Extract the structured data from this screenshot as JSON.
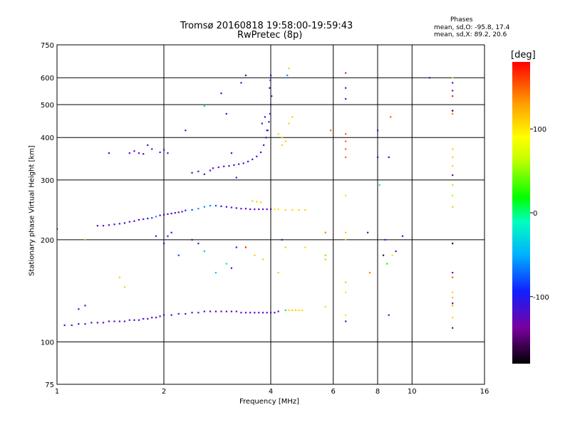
{
  "chart_data": {
    "type": "scatter",
    "title": "Tromsø 20160818 19:58:00-19:59:43",
    "subtitle": "RwPretec (8p)",
    "xlabel": "Frequency [MHz]",
    "ylabel": "Stationary phase Virtual Height [km]",
    "x_scale": "log",
    "y_scale": "log",
    "xlim": [
      1,
      16
    ],
    "ylim": [
      75,
      750
    ],
    "x_ticks": [
      1,
      2,
      4,
      6,
      8,
      10,
      16
    ],
    "y_ticks": [
      75,
      100,
      200,
      300,
      400,
      500,
      600,
      750
    ],
    "grid": true,
    "colorbar": {
      "unit": "[deg]",
      "ticks": [
        100,
        0,
        -100
      ],
      "range": [
        -180,
        180
      ],
      "colormap": "rainbow"
    },
    "stats": {
      "heading": "Phases",
      "o_line": "mean, sd,O: -95.8, 17.4",
      "x_line": "mean, sd,X:  89.2, 20.6"
    },
    "series": [
      {
        "points": [
          [
            1.05,
            112,
            -120
          ],
          [
            1.1,
            112,
            -120
          ],
          [
            1.15,
            113,
            -120
          ],
          [
            1.2,
            113,
            -120
          ],
          [
            1.25,
            114,
            -120
          ],
          [
            1.3,
            114,
            -120
          ],
          [
            1.35,
            114,
            -120
          ],
          [
            1.4,
            115,
            -120
          ],
          [
            1.45,
            115,
            -120
          ],
          [
            1.5,
            115,
            -120
          ],
          [
            1.55,
            115,
            -120
          ],
          [
            1.6,
            116,
            -120
          ],
          [
            1.65,
            116,
            -120
          ],
          [
            1.7,
            116,
            -120
          ],
          [
            1.75,
            117,
            -120
          ],
          [
            1.8,
            117,
            -120
          ],
          [
            1.85,
            118,
            -120
          ],
          [
            1.9,
            118,
            -120
          ],
          [
            1.95,
            119,
            -120
          ],
          [
            2.0,
            120,
            -120
          ],
          [
            2.1,
            120,
            -120
          ],
          [
            2.2,
            121,
            -120
          ],
          [
            2.3,
            121,
            -120
          ],
          [
            2.4,
            122,
            -120
          ],
          [
            2.5,
            122,
            -120
          ],
          [
            2.6,
            123,
            -120
          ],
          [
            2.7,
            123,
            -120
          ],
          [
            2.8,
            123,
            -120
          ],
          [
            2.9,
            123,
            -120
          ],
          [
            3.0,
            123,
            -120
          ],
          [
            3.1,
            123,
            -120
          ],
          [
            3.2,
            123,
            -120
          ],
          [
            3.3,
            122,
            -120
          ],
          [
            3.4,
            122,
            -120
          ],
          [
            3.5,
            122,
            -120
          ],
          [
            3.6,
            122,
            -120
          ],
          [
            3.7,
            122,
            -120
          ],
          [
            3.8,
            122,
            -120
          ],
          [
            3.9,
            122,
            -120
          ],
          [
            4.0,
            122,
            -120
          ],
          [
            4.1,
            122,
            -120
          ],
          [
            4.2,
            123,
            -120
          ],
          [
            4.4,
            124,
            20
          ],
          [
            4.5,
            124,
            110
          ],
          [
            4.6,
            124,
            110
          ],
          [
            4.7,
            124,
            110
          ],
          [
            4.8,
            124,
            110
          ],
          [
            4.9,
            124,
            110
          ],
          [
            1.3,
            220,
            -120
          ],
          [
            1.35,
            220,
            -120
          ],
          [
            1.4,
            221,
            -120
          ],
          [
            1.45,
            222,
            -120
          ],
          [
            1.5,
            223,
            -120
          ],
          [
            1.55,
            224,
            -120
          ],
          [
            1.6,
            226,
            -120
          ],
          [
            1.65,
            227,
            -120
          ],
          [
            1.7,
            229,
            -120
          ],
          [
            1.75,
            230,
            -120
          ],
          [
            1.8,
            231,
            -100
          ],
          [
            1.85,
            232,
            -80
          ],
          [
            1.9,
            234,
            -60
          ],
          [
            1.95,
            236,
            -120
          ],
          [
            2.0,
            237,
            -120
          ],
          [
            2.05,
            238,
            -120
          ],
          [
            2.1,
            239,
            -120
          ],
          [
            2.15,
            240,
            -120
          ],
          [
            2.2,
            241,
            -120
          ],
          [
            2.25,
            242,
            -120
          ],
          [
            2.3,
            244,
            -100
          ],
          [
            2.4,
            245,
            -80
          ],
          [
            2.5,
            247,
            -60
          ],
          [
            2.6,
            250,
            -60
          ],
          [
            2.7,
            252,
            -60
          ],
          [
            2.8,
            252,
            -80
          ],
          [
            2.9,
            251,
            -100
          ],
          [
            3.0,
            250,
            -120
          ],
          [
            3.1,
            249,
            -120
          ],
          [
            3.2,
            248,
            -120
          ],
          [
            3.3,
            247,
            -120
          ],
          [
            3.4,
            247,
            -120
          ],
          [
            3.5,
            246,
            -120
          ],
          [
            3.6,
            246,
            -120
          ],
          [
            3.7,
            246,
            -120
          ],
          [
            3.8,
            246,
            -120
          ],
          [
            3.9,
            246,
            -120
          ],
          [
            4.0,
            246,
            -120
          ],
          [
            4.1,
            246,
            100
          ],
          [
            4.2,
            246,
            100
          ],
          [
            4.4,
            245,
            110
          ],
          [
            4.6,
            245,
            110
          ],
          [
            4.8,
            245,
            110
          ],
          [
            5.0,
            245,
            110
          ],
          [
            3.55,
            260,
            110
          ],
          [
            3.65,
            259,
            110
          ],
          [
            3.75,
            258,
            110
          ],
          [
            2.75,
            325,
            -120
          ],
          [
            2.85,
            327,
            -120
          ],
          [
            2.95,
            329,
            -120
          ],
          [
            3.05,
            330,
            -120
          ],
          [
            3.15,
            332,
            -120
          ],
          [
            3.25,
            334,
            -120
          ],
          [
            3.35,
            336,
            -120
          ],
          [
            3.45,
            340,
            -120
          ],
          [
            3.55,
            345,
            -120
          ],
          [
            3.65,
            352,
            -120
          ],
          [
            3.75,
            362,
            -120
          ],
          [
            3.82,
            380,
            -120
          ],
          [
            3.88,
            400,
            -120
          ],
          [
            3.92,
            420,
            -120
          ],
          [
            3.95,
            445,
            -120
          ],
          [
            3.98,
            470,
            -120
          ],
          [
            4.0,
            500,
            -120
          ],
          [
            4.02,
            530,
            -120
          ],
          [
            3.97,
            560,
            -120
          ],
          [
            3.99,
            590,
            -120
          ],
          [
            4.0,
            610,
            -120
          ],
          [
            3.9,
            420,
            -110
          ],
          [
            3.85,
            460,
            -110
          ],
          [
            3.78,
            440,
            -110
          ],
          [
            4.2,
            410,
            110
          ],
          [
            4.3,
            400,
            110
          ],
          [
            4.4,
            390,
            110
          ],
          [
            4.5,
            440,
            110
          ],
          [
            4.6,
            460,
            110
          ],
          [
            4.3,
            380,
            110
          ],
          [
            1.6,
            360,
            -120
          ],
          [
            1.65,
            365,
            -120
          ],
          [
            1.7,
            360,
            -120
          ],
          [
            1.75,
            358,
            -120
          ],
          [
            1.95,
            362,
            -120
          ],
          [
            2.0,
            368,
            -120
          ],
          [
            2.05,
            360,
            -120
          ],
          [
            2.4,
            315,
            -120
          ],
          [
            2.5,
            318,
            -120
          ],
          [
            2.6,
            312,
            -120
          ],
          [
            2.7,
            320,
            -120
          ],
          [
            2.6,
            495,
            -30
          ],
          [
            2.9,
            540,
            -120
          ],
          [
            3.0,
            470,
            -120
          ],
          [
            3.3,
            580,
            -110
          ],
          [
            3.4,
            610,
            -120
          ],
          [
            6.5,
            620,
            170
          ],
          [
            6.5,
            560,
            -110
          ],
          [
            6.5,
            520,
            -110
          ],
          [
            6.5,
            410,
            150
          ],
          [
            6.5,
            390,
            150
          ],
          [
            6.5,
            370,
            150
          ],
          [
            6.5,
            350,
            150
          ],
          [
            6.5,
            270,
            100
          ],
          [
            6.5,
            210,
            110
          ],
          [
            6.5,
            200,
            110
          ],
          [
            6.5,
            150,
            50
          ],
          [
            6.5,
            140,
            70
          ],
          [
            6.5,
            120,
            100
          ],
          [
            6.5,
            115,
            -130
          ],
          [
            8.0,
            420,
            -110
          ],
          [
            8.0,
            350,
            -120
          ],
          [
            8.1,
            290,
            -20
          ],
          [
            8.6,
            350,
            -120
          ],
          [
            8.7,
            460,
            150
          ],
          [
            8.4,
            200,
            -120
          ],
          [
            8.3,
            180,
            -150
          ],
          [
            8.5,
            170,
            20
          ],
          [
            8.8,
            180,
            100
          ],
          [
            9.0,
            185,
            -120
          ],
          [
            8.6,
            120,
            -120
          ],
          [
            11.2,
            600,
            -130
          ],
          [
            13.0,
            600,
            110
          ],
          [
            13.0,
            580,
            -120
          ],
          [
            13.0,
            550,
            -130
          ],
          [
            13.0,
            530,
            170
          ],
          [
            13.0,
            480,
            -170
          ],
          [
            13.0,
            470,
            140
          ],
          [
            13.0,
            370,
            110
          ],
          [
            13.0,
            350,
            110
          ],
          [
            13.0,
            330,
            110
          ],
          [
            13.0,
            310,
            -140
          ],
          [
            13.0,
            290,
            110
          ],
          [
            13.0,
            270,
            60
          ],
          [
            13.0,
            250,
            110
          ],
          [
            13.0,
            195,
            -170
          ],
          [
            13.0,
            160,
            -120
          ],
          [
            13.0,
            155,
            150
          ],
          [
            13.0,
            140,
            110
          ],
          [
            13.0,
            135,
            120
          ],
          [
            13.0,
            130,
            -140
          ],
          [
            13.0,
            128,
            120
          ],
          [
            13.0,
            118,
            110
          ],
          [
            13.0,
            110,
            -140
          ],
          [
            5.7,
            180,
            40
          ],
          [
            5.7,
            175,
            50
          ],
          [
            5.7,
            210,
            140
          ],
          [
            5.7,
            127,
            110
          ],
          [
            5.9,
            420,
            150
          ],
          [
            5.0,
            190,
            110
          ],
          [
            4.3,
            200,
            -120
          ],
          [
            4.4,
            190,
            110
          ],
          [
            7.5,
            210,
            -120
          ],
          [
            7.6,
            160,
            140
          ],
          [
            9.4,
            205,
            -120
          ],
          [
            1.0,
            215,
            -120
          ],
          [
            1.2,
            200,
            120
          ],
          [
            1.15,
            125,
            -120
          ],
          [
            1.2,
            128,
            -120
          ],
          [
            1.55,
            145,
            110
          ],
          [
            1.5,
            155,
            110
          ],
          [
            2.3,
            420,
            -120
          ],
          [
            3.1,
            360,
            -120
          ],
          [
            3.2,
            305,
            -120
          ],
          [
            1.8,
            380,
            -120
          ],
          [
            1.85,
            370,
            -120
          ],
          [
            1.4,
            360,
            -120
          ],
          [
            4.5,
            640,
            110
          ],
          [
            4.45,
            610,
            -60
          ],
          [
            3.2,
            190,
            -120
          ],
          [
            3.4,
            190,
            170
          ],
          [
            3.6,
            180,
            110
          ],
          [
            3.8,
            175,
            110
          ],
          [
            4.2,
            160,
            110
          ],
          [
            2.0,
            195,
            -120
          ],
          [
            2.05,
            205,
            -120
          ],
          [
            2.1,
            210,
            -100
          ],
          [
            1.9,
            205,
            -120
          ],
          [
            2.2,
            180,
            -80
          ],
          [
            2.4,
            200,
            -120
          ],
          [
            2.5,
            195,
            -120
          ],
          [
            2.6,
            185,
            -40
          ],
          [
            2.8,
            160,
            -40
          ],
          [
            3.0,
            170,
            -20
          ],
          [
            3.1,
            165,
            -120
          ]
        ]
      }
    ]
  }
}
